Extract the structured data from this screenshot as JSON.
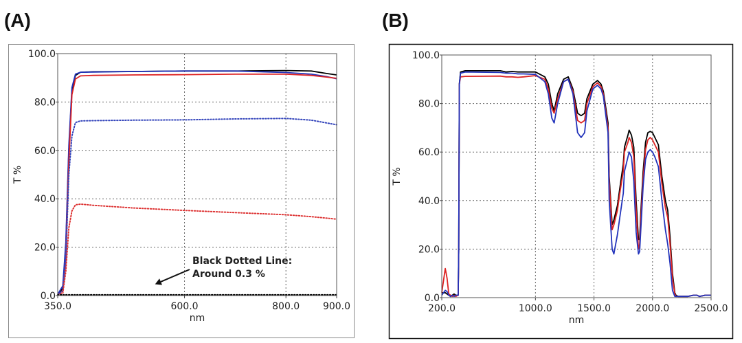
{
  "panels": {
    "a_label": "(A)",
    "b_label": "(B)"
  },
  "chart_data": [
    {
      "type": "line",
      "panel": "(A)",
      "xlabel": "nm",
      "ylabel": "T %",
      "xlim": [
        350,
        900
      ],
      "ylim": [
        0,
        100
      ],
      "xticks": [
        350,
        600,
        800,
        900
      ],
      "xtick_labels": [
        "350.0",
        "600.0",
        "800.0",
        "900.0"
      ],
      "yticks": [
        0,
        20,
        40,
        60,
        80,
        100
      ],
      "ytick_labels": [
        "0.0",
        "20.0",
        "40.0",
        "60.0",
        "80.0",
        "100.0"
      ],
      "grid": true,
      "annotation": {
        "lines": [
          "Black Dotted Line:",
          "Around 0.3 %"
        ],
        "arrow_target": [
          542,
          3
        ]
      },
      "series": [
        {
          "color": "#000000",
          "style": "solid",
          "x": [
            350,
            360,
            366,
            372,
            378,
            385,
            395,
            420,
            500,
            600,
            700,
            800,
            850,
            880,
            900
          ],
          "y": [
            0.5,
            3,
            20,
            60,
            85,
            91,
            92.3,
            92.5,
            92.6,
            92.8,
            92.8,
            93,
            92.8,
            91.8,
            91.2
          ]
        },
        {
          "color": "#2233bb",
          "style": "solid",
          "x": [
            350,
            360,
            366,
            372,
            378,
            385,
            395,
            420,
            500,
            600,
            700,
            800,
            850,
            880,
            900
          ],
          "y": [
            0.5,
            4,
            22,
            62,
            86,
            91.5,
            92.3,
            92.4,
            92.6,
            92.8,
            92.8,
            92.2,
            91.5,
            90.5,
            89.6
          ]
        },
        {
          "color": "#dd2222",
          "style": "solid",
          "x": [
            350,
            360,
            366,
            372,
            378,
            385,
            395,
            420,
            500,
            600,
            700,
            800,
            850,
            880,
            900
          ],
          "y": [
            0.3,
            2,
            15,
            55,
            83,
            89.5,
            90.8,
            91,
            91.2,
            91.3,
            91.5,
            91.5,
            91,
            90.3,
            89.8
          ]
        },
        {
          "color": "#3344bb",
          "style": "dotted",
          "x": [
            350,
            360,
            366,
            372,
            378,
            385,
            395,
            420,
            500,
            600,
            700,
            800,
            850,
            900
          ],
          "y": [
            0.3,
            2,
            15,
            50,
            66,
            71.5,
            72.2,
            72.3,
            72.5,
            72.6,
            73,
            73.2,
            72.5,
            70.6
          ]
        },
        {
          "color": "#dd3333",
          "style": "dotted",
          "x": [
            350,
            360,
            366,
            372,
            378,
            385,
            395,
            420,
            500,
            600,
            700,
            800,
            850,
            900
          ],
          "y": [
            0.2,
            1,
            10,
            28,
            35,
            37.5,
            37.8,
            37.3,
            36.2,
            35.2,
            34.3,
            33.4,
            32.6,
            31.6
          ]
        },
        {
          "color": "#000000",
          "style": "dotted",
          "x": [
            350,
            900
          ],
          "y": [
            0.3,
            0.3
          ]
        }
      ]
    },
    {
      "type": "line",
      "panel": "(B)",
      "xlabel": "nm",
      "ylabel": "T %",
      "xlim": [
        200,
        2500
      ],
      "ylim": [
        0,
        100
      ],
      "xticks": [
        200,
        1000,
        1500,
        2000,
        2500
      ],
      "xtick_labels": [
        "200.0",
        "1000.0",
        "1500.0",
        "2000.0",
        "2500.0"
      ],
      "yticks": [
        0,
        20,
        40,
        60,
        80,
        100
      ],
      "ytick_labels": [
        "0.0",
        "20.0",
        "40.0",
        "60.0",
        "80.0",
        "100.0"
      ],
      "grid": true,
      "series": [
        {
          "color": "#000000",
          "style": "solid",
          "x": [
            200,
            230,
            245,
            260,
            275,
            290,
            305,
            320,
            340,
            345,
            350,
            360,
            400,
            700,
            750,
            800,
            850,
            900,
            1000,
            1080,
            1110,
            1140,
            1160,
            1190,
            1240,
            1280,
            1320,
            1360,
            1390,
            1420,
            1440,
            1490,
            1530,
            1560,
            1580,
            1620,
            1630,
            1655,
            1670,
            1700,
            1720,
            1750,
            1760,
            1790,
            1800,
            1820,
            1840,
            1860,
            1880,
            1890,
            1900,
            1920,
            1940,
            1960,
            1980,
            2000,
            2020,
            2050,
            2080,
            2110,
            2130,
            2150,
            2170,
            2190,
            2200,
            2220,
            2250,
            2300,
            2350,
            2380,
            2400,
            2450,
            2500
          ],
          "y": [
            2,
            2,
            1.5,
            1,
            0.5,
            1,
            1.5,
            1,
            1,
            20,
            88,
            93,
            93.5,
            93.5,
            93,
            93.2,
            93,
            93,
            93,
            91,
            88,
            80,
            77,
            84,
            90,
            91,
            86,
            76,
            75,
            76,
            82,
            88,
            89.5,
            88,
            85,
            72,
            50,
            30,
            32,
            38,
            45,
            55,
            62,
            67,
            69,
            67,
            62,
            40,
            24,
            24,
            35,
            52,
            64,
            68,
            68.5,
            68,
            66,
            63,
            50,
            40,
            36,
            25,
            10,
            2,
            1,
            0.5,
            0.5,
            0.5,
            1,
            1,
            0.5,
            1,
            1
          ]
        },
        {
          "color": "#dd2222",
          "style": "solid",
          "x": [
            200,
            230,
            245,
            260,
            275,
            290,
            305,
            320,
            340,
            345,
            350,
            360,
            400,
            700,
            750,
            800,
            850,
            900,
            1000,
            1080,
            1110,
            1140,
            1160,
            1190,
            1240,
            1280,
            1320,
            1360,
            1390,
            1420,
            1440,
            1490,
            1530,
            1560,
            1580,
            1620,
            1630,
            1655,
            1670,
            1700,
            1720,
            1750,
            1760,
            1790,
            1800,
            1820,
            1840,
            1860,
            1880,
            1890,
            1900,
            1920,
            1940,
            1960,
            1980,
            2000,
            2020,
            2050,
            2080,
            2110,
            2130,
            2150,
            2170,
            2190,
            2200,
            2220,
            2250,
            2300,
            2350,
            2380,
            2400,
            2450,
            2500
          ],
          "y": [
            2,
            12,
            8,
            1.5,
            1,
            0.5,
            1,
            0.5,
            1,
            20,
            88,
            91,
            91.2,
            91.3,
            91,
            91,
            90.8,
            91,
            91.5,
            90,
            86,
            78,
            76,
            82,
            89,
            90,
            85,
            73,
            72,
            73,
            80,
            87,
            88.5,
            87,
            84,
            70,
            48,
            28,
            30,
            36,
            43,
            52,
            60,
            64,
            66,
            64,
            58,
            36,
            20,
            22,
            32,
            49,
            61,
            65,
            66,
            65,
            63,
            60,
            47,
            37,
            33,
            22,
            8,
            1.5,
            0.5,
            0.5,
            0.5,
            0.5,
            1,
            1,
            0.5,
            1,
            1
          ]
        },
        {
          "color": "#2233bb",
          "style": "solid",
          "x": [
            200,
            230,
            245,
            260,
            275,
            290,
            305,
            320,
            340,
            345,
            350,
            360,
            400,
            700,
            750,
            800,
            850,
            900,
            1000,
            1080,
            1110,
            1140,
            1160,
            1190,
            1240,
            1280,
            1320,
            1360,
            1390,
            1420,
            1440,
            1490,
            1530,
            1560,
            1580,
            1620,
            1630,
            1655,
            1670,
            1700,
            1720,
            1750,
            1760,
            1790,
            1800,
            1820,
            1840,
            1860,
            1880,
            1890,
            1900,
            1920,
            1940,
            1960,
            1980,
            2000,
            2020,
            2050,
            2080,
            2110,
            2130,
            2150,
            2170,
            2190,
            2200,
            2220,
            2250,
            2300,
            2350,
            2380,
            2400,
            2450,
            2500
          ],
          "y": [
            1,
            3,
            2.5,
            1,
            0.5,
            1,
            0.5,
            1,
            1,
            20,
            88,
            92.5,
            93,
            92.8,
            92.5,
            92.5,
            92.2,
            92.2,
            92,
            89,
            84,
            74,
            72,
            80,
            89,
            90,
            84,
            68,
            66,
            68,
            77,
            86,
            87.5,
            86,
            83,
            68,
            40,
            20,
            18,
            26,
            33,
            43,
            52,
            58,
            60,
            58,
            48,
            27,
            18,
            19,
            28,
            46,
            57,
            60,
            61,
            60,
            58,
            54,
            40,
            28,
            22,
            14,
            3,
            0.5,
            0.5,
            0.5,
            0.5,
            0.5,
            1,
            1,
            0.5,
            1,
            1
          ]
        }
      ]
    }
  ]
}
